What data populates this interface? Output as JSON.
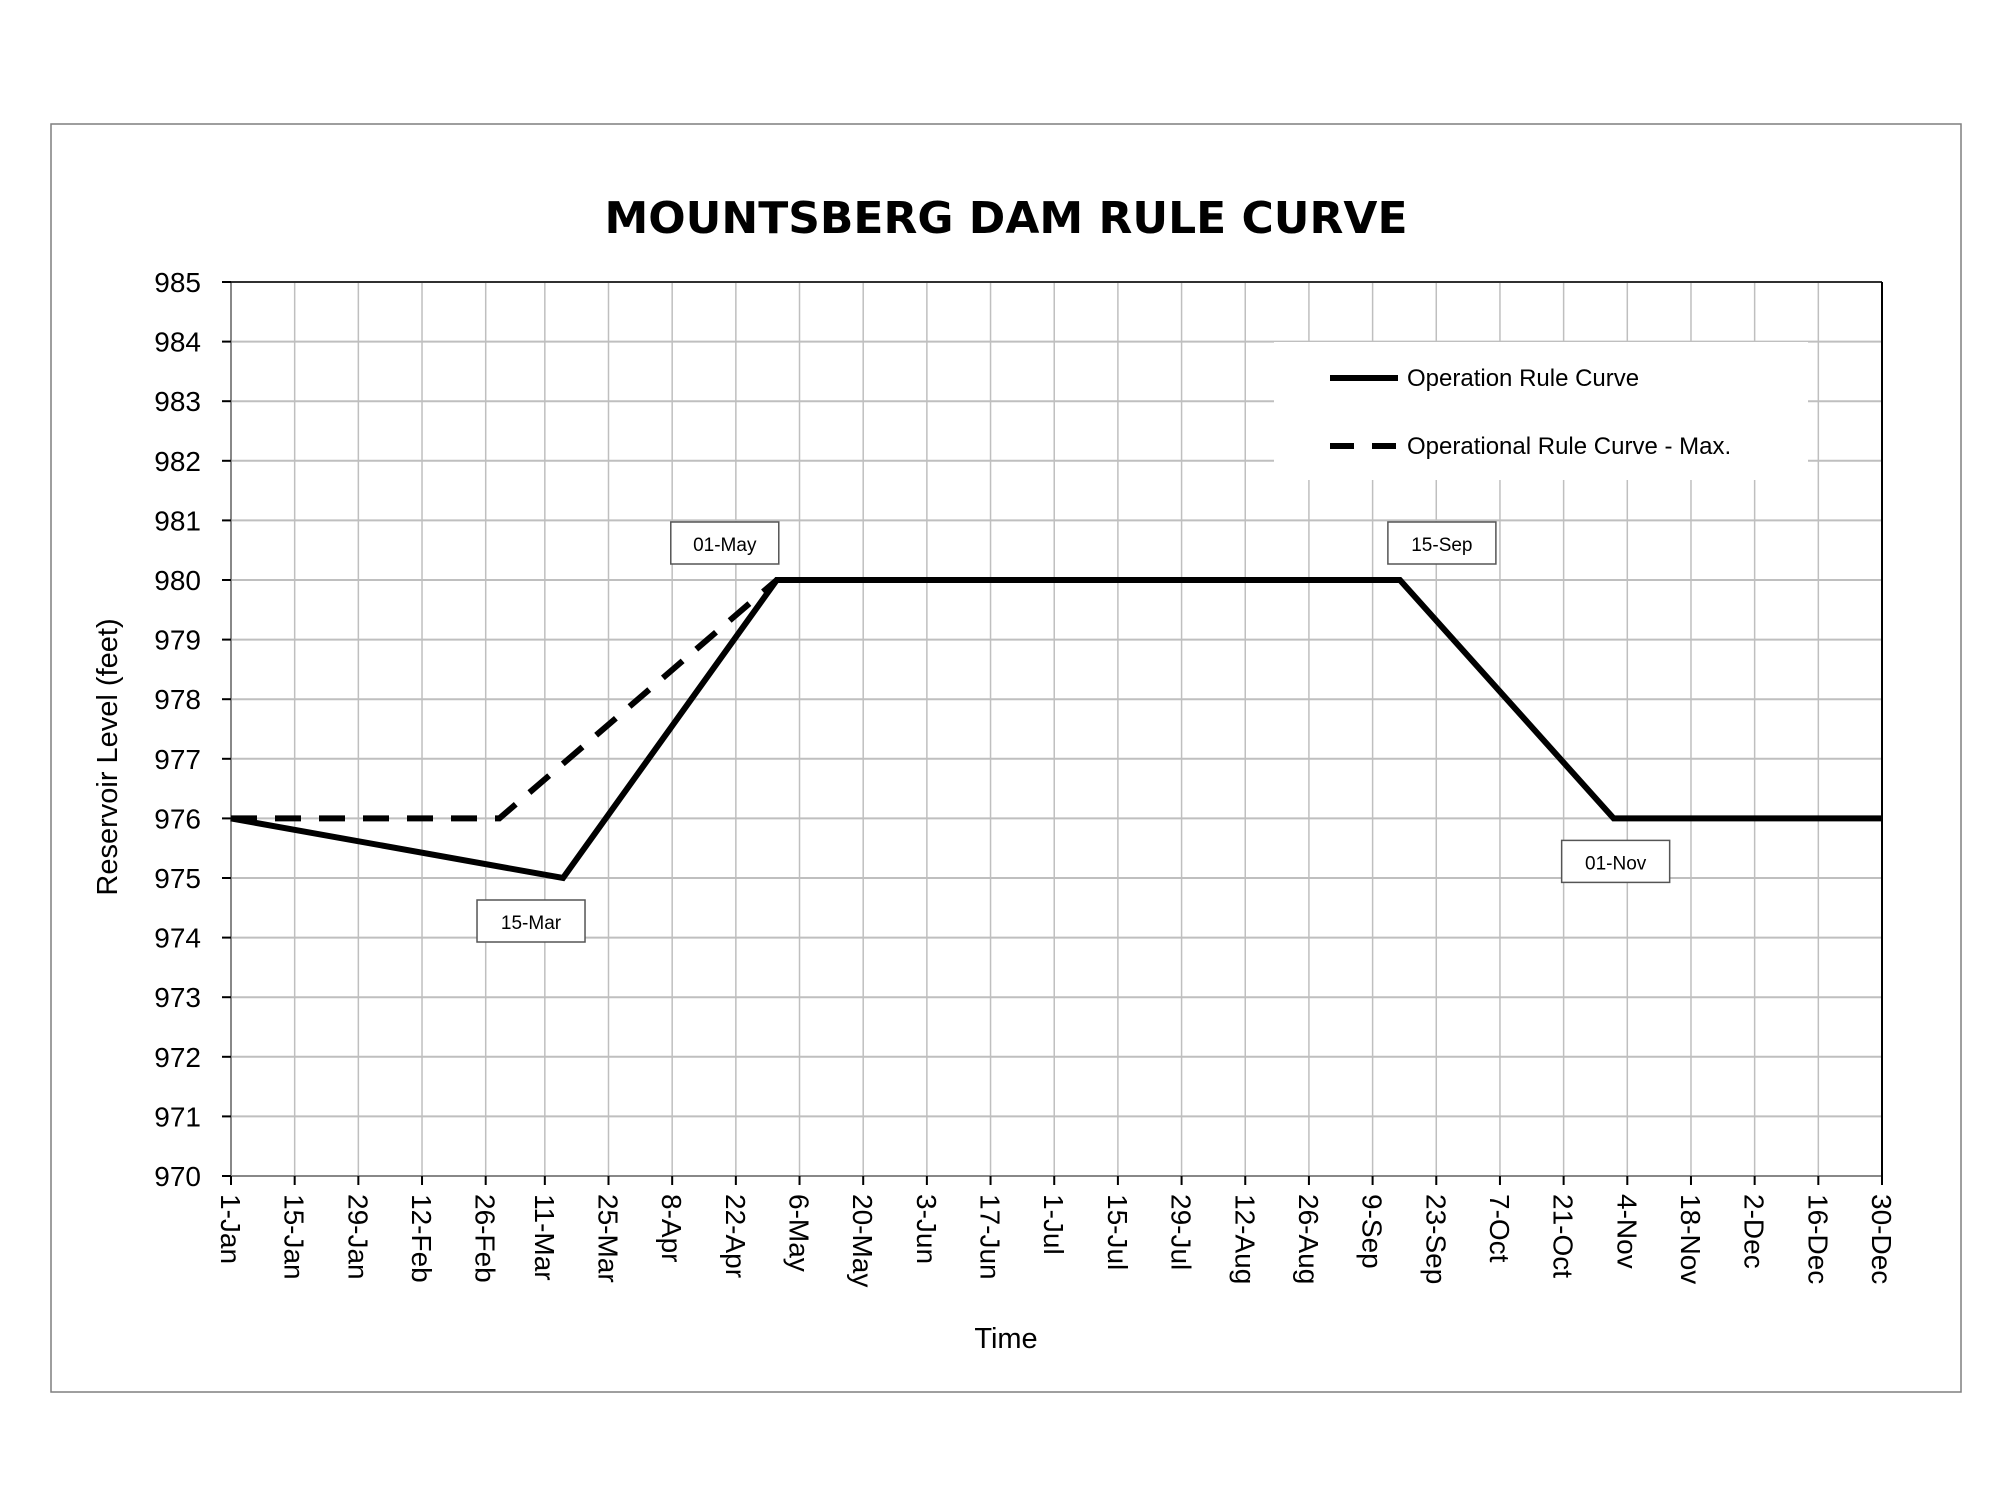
{
  "chart_data": {
    "type": "line",
    "title": "MOUNTSBERG DAM RULE CURVE",
    "xlabel": "Time",
    "ylabel": "Reservoir Level (feet)",
    "ylim": [
      970,
      985
    ],
    "yticks": [
      "970",
      "971",
      "972",
      "973",
      "974",
      "975",
      "976",
      "977",
      "978",
      "979",
      "980",
      "981",
      "982",
      "983",
      "984",
      "985"
    ],
    "xlim": [
      "1-Jan",
      "30-Dec"
    ],
    "xticks": [
      "1-Jan",
      "15-Jan",
      "29-Jan",
      "12-Feb",
      "26-Feb",
      "11-Mar",
      "25-Mar",
      "8-Apr",
      "22-Apr",
      "6-May",
      "20-May",
      "3-Jun",
      "17-Jun",
      "1-Jul",
      "15-Jul",
      "29-Jul",
      "12-Aug",
      "26-Aug",
      "9-Sep",
      "23-Sep",
      "7-Oct",
      "21-Oct",
      "4-Nov",
      "18-Nov",
      "2-Dec",
      "16-Dec",
      "30-Dec"
    ],
    "grid": true,
    "legend_position": "top-right",
    "series": [
      {
        "name": "Operation Rule Curve",
        "style": "solid",
        "x": [
          "1-Jan",
          "15-Mar",
          "1-May",
          "15-Sep",
          "1-Nov",
          "30-Dec"
        ],
        "y": [
          976,
          975,
          980,
          980,
          976,
          976
        ]
      },
      {
        "name": "Operational Rule Curve - Max.",
        "style": "dashed",
        "x": [
          "1-Jan",
          "1-Mar",
          "1-May"
        ],
        "y": [
          976,
          976,
          980
        ]
      }
    ],
    "annotations": [
      {
        "label": "15-Mar",
        "x": "15-Mar",
        "y": 975,
        "placement": "below"
      },
      {
        "label": "01-May",
        "x": "1-May",
        "y": 980,
        "placement": "above"
      },
      {
        "label": "15-Sep",
        "x": "15-Sep",
        "y": 980,
        "placement": "above"
      },
      {
        "label": "01-Nov",
        "x": "1-Nov",
        "y": 976,
        "placement": "below"
      }
    ],
    "colors": {
      "line": "#000000",
      "grid": "#bfbfbf",
      "frame": "#7f7f7f"
    }
  }
}
